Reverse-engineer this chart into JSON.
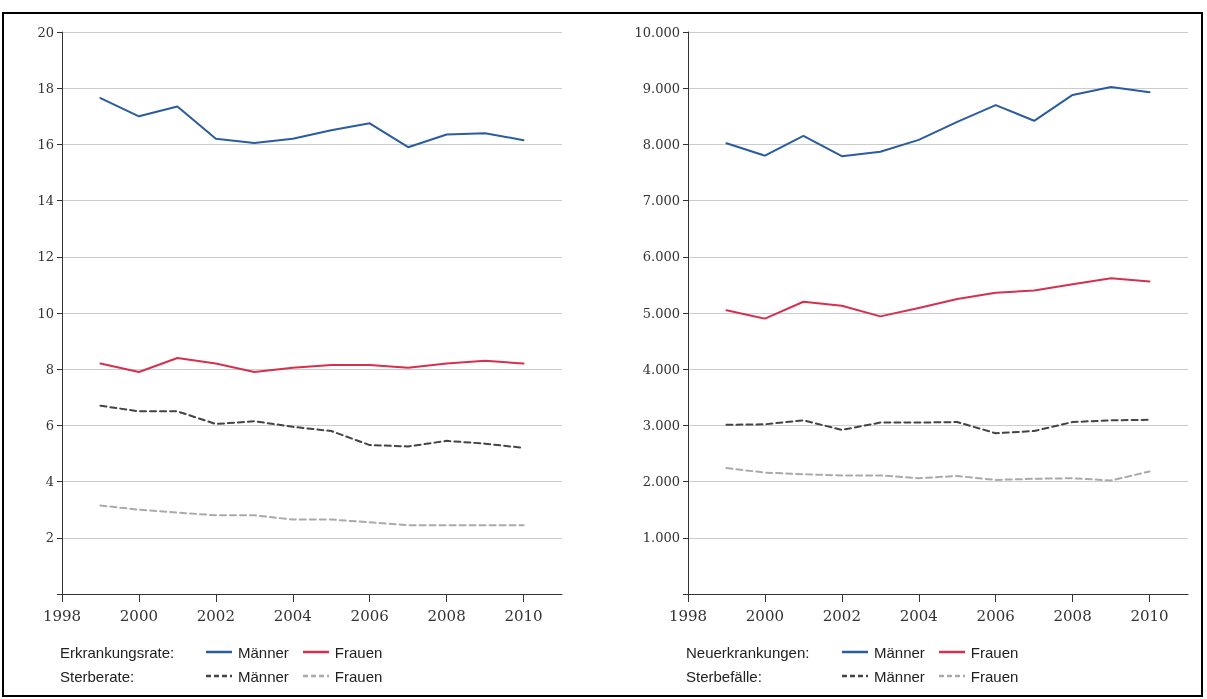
{
  "chart_data": [
    {
      "type": "line",
      "x": [
        1999,
        2000,
        2001,
        2002,
        2003,
        2004,
        2005,
        2006,
        2007,
        2008,
        2009,
        2010
      ],
      "series": [
        {
          "name": "Männer",
          "color": "#2b5c9e",
          "line_style": "solid",
          "values": [
            17.65,
            17.0,
            17.35,
            16.2,
            16.05,
            16.2,
            16.5,
            16.75,
            15.9,
            16.35,
            16.4,
            16.15
          ]
        },
        {
          "name": "Frauen",
          "color": "#d6304f",
          "line_style": "solid",
          "values": [
            8.2,
            7.9,
            8.4,
            8.2,
            7.9,
            8.05,
            8.15,
            8.15,
            8.05,
            8.2,
            8.3,
            8.2
          ]
        },
        {
          "name": "Männer",
          "color": "#444444",
          "line_style": "dashed",
          "values": [
            6.7,
            6.5,
            6.5,
            6.05,
            6.15,
            5.95,
            5.8,
            5.3,
            5.25,
            5.45,
            5.35,
            5.2
          ]
        },
        {
          "name": "Frauen",
          "color": "#aaaaaa",
          "line_style": "dashed",
          "values": [
            3.15,
            3.0,
            2.9,
            2.8,
            2.8,
            2.65,
            2.65,
            2.55,
            2.45,
            2.45,
            2.45,
            2.45
          ]
        }
      ],
      "xlim": [
        1998,
        2011
      ],
      "xticks": [
        1998,
        2000,
        2002,
        2004,
        2006,
        2008,
        2010
      ],
      "ylim": [
        0,
        20
      ],
      "yticks": [
        {
          "value": 0,
          "label": null
        },
        2,
        4,
        6,
        8,
        10,
        12,
        14,
        16,
        18,
        20
      ],
      "grid": "y",
      "legend": "bottom",
      "marker": "none",
      "annotations": [
        "Erkrankungsrate:",
        "Sterberate:"
      ]
    },
    {
      "type": "line",
      "x": [
        1999,
        2000,
        2001,
        2002,
        2003,
        2004,
        2005,
        2006,
        2007,
        2008,
        2009,
        2010
      ],
      "series": [
        {
          "name": "Männer",
          "color": "#2b5c9e",
          "line_style": "solid",
          "values": [
            8020,
            7800,
            8150,
            7790,
            7870,
            8080,
            8400,
            8700,
            8420,
            8880,
            9020,
            8930
          ]
        },
        {
          "name": "Frauen",
          "color": "#d6304f",
          "line_style": "solid",
          "values": [
            5050,
            4900,
            5200,
            5130,
            4940,
            5090,
            5250,
            5360,
            5400,
            5510,
            5620,
            5560
          ]
        },
        {
          "name": "Männer",
          "color": "#444444",
          "line_style": "dashed",
          "values": [
            3010,
            3020,
            3090,
            2920,
            3050,
            3050,
            3060,
            2860,
            2900,
            3060,
            3090,
            3100
          ]
        },
        {
          "name": "Frauen",
          "color": "#aaaaaa",
          "line_style": "dashed",
          "values": [
            2240,
            2160,
            2130,
            2110,
            2110,
            2060,
            2100,
            2030,
            2050,
            2060,
            2020,
            2180
          ]
        }
      ],
      "xlim": [
        1998,
        2011
      ],
      "xticks": [
        1998,
        2000,
        2002,
        2004,
        2006,
        2008,
        2010
      ],
      "ylim": [
        0,
        10000
      ],
      "yticks": [
        {
          "value": 0,
          "label": null
        },
        {
          "value": 1000,
          "label": "1.000"
        },
        {
          "value": 2000,
          "label": "2.000"
        },
        {
          "value": 3000,
          "label": "3.000"
        },
        {
          "value": 4000,
          "label": "4.000"
        },
        {
          "value": 5000,
          "label": "5.000"
        },
        {
          "value": 6000,
          "label": "6.000"
        },
        {
          "value": 7000,
          "label": "7.000"
        },
        {
          "value": 8000,
          "label": "8.000"
        },
        {
          "value": 9000,
          "label": "9.000"
        },
        {
          "value": 10000,
          "label": "10.000"
        }
      ],
      "grid": "y",
      "legend": "bottom",
      "marker": "none",
      "annotations": [
        "Neuerkrankungen:",
        "Sterbefälle:"
      ]
    }
  ]
}
